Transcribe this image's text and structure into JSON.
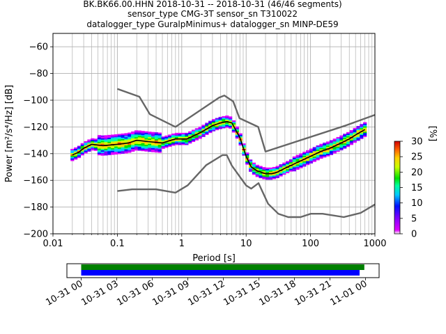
{
  "title_lines": [
    "BK.BK66.00.HHN   2018-10-31 -- 2018-10-31  (46/46 segments)",
    "sensor_type CMG-3T sensor_sn T310022",
    "datalogger_type GuralpMinimus+ datalogger_sn MINP-DE59"
  ],
  "chart_data": {
    "type": "line",
    "xlabel": "Period [s]",
    "ylabel": "Power [m²/s⁴/Hz] [dB]",
    "xscale": "log",
    "xlim": [
      0.01,
      1000
    ],
    "ylim": [
      -200,
      -50
    ],
    "x_ticks": [
      0.01,
      0.1,
      1,
      10,
      100,
      1000
    ],
    "x_tick_labels": [
      "0.01",
      "0.1",
      "1",
      "10",
      "100",
      "1000"
    ],
    "y_ticks": [
      -200,
      -180,
      -160,
      -140,
      -120,
      -100,
      -80,
      -60
    ],
    "y_tick_labels": [
      "−200",
      "−180",
      "−160",
      "−140",
      "−120",
      "−100",
      "−80",
      "−60"
    ],
    "grid": true,
    "series": [
      {
        "role": "high-noise-model",
        "color": "#666666",
        "x": [
          0.1,
          0.22,
          0.32,
          0.8,
          3.8,
          4.6,
          6.3,
          7.9,
          15.4,
          20,
          354,
          1000
        ],
        "y": [
          -91.5,
          -97.4,
          -110.5,
          -120,
          -98,
          -96.5,
          -101,
          -113.5,
          -120,
          -138.5,
          -118.9,
          -111
        ]
      },
      {
        "role": "low-noise-model",
        "color": "#666666",
        "x": [
          0.1,
          0.17,
          0.4,
          0.8,
          1.24,
          2.4,
          4.3,
          5,
          6,
          10,
          12,
          15.6,
          21.9,
          31.6,
          45,
          70,
          101,
          154,
          328,
          600,
          1000
        ],
        "y": [
          -168,
          -166.7,
          -166.7,
          -169.2,
          -163.7,
          -148.6,
          -141.1,
          -141.1,
          -149,
          -163.8,
          -166.2,
          -162.1,
          -177.5,
          -185,
          -187.5,
          -187.5,
          -185,
          -185,
          -187.5,
          -184.4,
          -178
        ]
      },
      {
        "role": "mode",
        "color": "#000000",
        "x": [
          0.02,
          0.025,
          0.03,
          0.04,
          0.06,
          0.1,
          0.15,
          0.2,
          0.3,
          0.5,
          0.8,
          1.2,
          2,
          3,
          4,
          5,
          6,
          8,
          10,
          12,
          15,
          20,
          25,
          30,
          40,
          60,
          100,
          150,
          200,
          300,
          400,
          500,
          700
        ],
        "y": [
          -141,
          -139,
          -136,
          -133,
          -134,
          -133,
          -132,
          -130,
          -131,
          -132,
          -129,
          -129,
          -124,
          -119,
          -117,
          -116,
          -117,
          -128,
          -142,
          -150,
          -153,
          -155,
          -155,
          -154,
          -151,
          -147,
          -142,
          -138,
          -136,
          -132,
          -129,
          -126,
          -122
        ]
      }
    ],
    "colorbar": {
      "label": "[%]",
      "min": 0,
      "max": 30,
      "ticks": [
        0,
        5,
        10,
        15,
        20,
        25,
        30
      ]
    }
  },
  "timeline": {
    "start": "2018-10-31 00:00",
    "end": "2018-11-01 00:00",
    "tick_labels": [
      "10-31 00",
      "10-31 03",
      "10-31 06",
      "10-31 09",
      "10-31 12",
      "10-31 15",
      "10-31 18",
      "10-31 21",
      "11-01 00"
    ],
    "tick_hours": [
      0,
      3,
      6,
      9,
      12,
      15,
      18,
      21,
      24
    ],
    "bars": [
      {
        "color": "#008000",
        "start_hour": 0,
        "end_hour": 23.9
      },
      {
        "color": "#0000ff",
        "start_hour": 0,
        "end_hour": 23.5
      }
    ]
  }
}
